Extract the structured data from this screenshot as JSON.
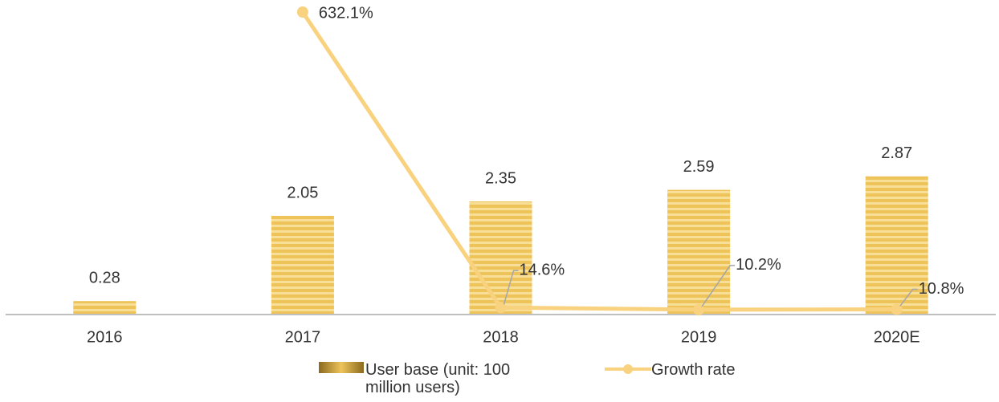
{
  "chart_data": {
    "type": "bar",
    "categories": [
      "2016",
      "2017",
      "2018",
      "2019",
      "2020E"
    ],
    "series": [
      {
        "name": "User base (unit: 100 million users)",
        "type": "bar",
        "color": "#edc35a",
        "values": [
          0.28,
          2.05,
          2.35,
          2.59,
          2.87
        ]
      },
      {
        "name": "Growth rate",
        "type": "line",
        "axis": "y2",
        "color": "#f9d27f",
        "values": [
          null,
          632.1,
          14.6,
          10.2,
          10.8
        ],
        "value_labels": [
          null,
          "632.1%",
          "14.6%",
          "10.2%",
          "10.8%"
        ]
      }
    ],
    "ylim": [
      0,
      6.5
    ],
    "y2lim": [
      0,
      654
    ],
    "legend": "bottom"
  }
}
